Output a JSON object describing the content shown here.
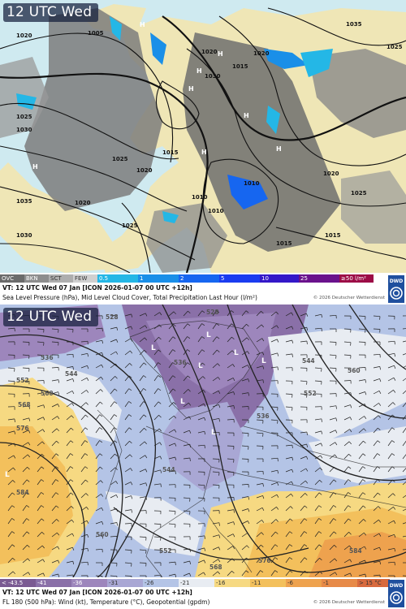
{
  "panels": [
    {
      "timestamp": "12 UTC Wed",
      "legend": [
        {
          "label": "OVC",
          "color": "#6b6b6b"
        },
        {
          "label": "BKN",
          "color": "#8d8d8d"
        },
        {
          "label": "SCT",
          "color": "#aeaeae"
        },
        {
          "label": "FEW",
          "color": "#d0d0d0"
        },
        {
          "label": "0.5",
          "color": "#24b7e6"
        },
        {
          "label": "1",
          "color": "#1a8fe8"
        },
        {
          "label": "2",
          "color": "#1666f0"
        },
        {
          "label": "5",
          "color": "#1b3cf0"
        },
        {
          "label": "10",
          "color": "#3418c8"
        },
        {
          "label": "25",
          "color": "#6a128c"
        },
        {
          "label": "≥50 l/m²",
          "color": "#9c0c46"
        }
      ],
      "info_line1": "VT: 12 UTC Wed  07 Jan [ICON 2026-01-07 00 UTC +12h]",
      "info_line2": "Sea Level Pressure (hPa), Mid Level Cloud Cover, Total Precipitation Last Hour (l/m²)",
      "credit": "© 2026 Deutscher Wetterdienst",
      "logo_text": "DWD",
      "isobar_labels": [
        "1005",
        "1035",
        "1020",
        "1015",
        "1020",
        "1025",
        "1030",
        "1020",
        "1020",
        "1025",
        "1030",
        "1035",
        "1025",
        "1030",
        "1015",
        "1010",
        "1025",
        "1020",
        "1010",
        "1010",
        "1015",
        "1020",
        "1025",
        "1015"
      ],
      "pressure_centers": [
        "H",
        "H",
        "H",
        "H",
        "H",
        "H",
        "H",
        "H"
      ]
    },
    {
      "timestamp": "12 UTC Wed",
      "legend": [
        {
          "label": "< -43.5",
          "color": "#7a5a92"
        },
        {
          "label": "-41",
          "color": "#8a70a8"
        },
        {
          "label": "-36",
          "color": "#9d86bc"
        },
        {
          "label": "-31",
          "color": "#a9a7d4"
        },
        {
          "label": "-26",
          "color": "#b4c4e6"
        },
        {
          "label": "-21",
          "color": "#e8ecf2"
        },
        {
          "label": "-16",
          "color": "#f6d982"
        },
        {
          "label": "-11",
          "color": "#f3c05c"
        },
        {
          "label": "-6",
          "color": "#eea24e"
        },
        {
          "label": "-1",
          "color": "#e78a48"
        },
        {
          "label": "> 15 °C",
          "color": "#d86a3e"
        }
      ],
      "info_line1": "VT: 12 UTC Wed  07 Jan [ICON 2026-01-07 00 UTC +12h]",
      "info_line2": "FL 180 (500 hPa): Wind (kt), Temperature (°C), Geopotential (gpdm)",
      "credit": "© 2026 Deutscher Wetterdienst",
      "logo_text": "DWD",
      "contour_labels": [
        "528",
        "536",
        "552",
        "544",
        "560",
        "568",
        "576",
        "584",
        "560",
        "552",
        "544",
        "536",
        "544",
        "552",
        "560",
        "568",
        "576",
        "584",
        "528",
        "536"
      ],
      "pressure_centers": [
        "L",
        "L",
        "L",
        "L",
        "L",
        "L",
        "L",
        "L"
      ]
    }
  ]
}
